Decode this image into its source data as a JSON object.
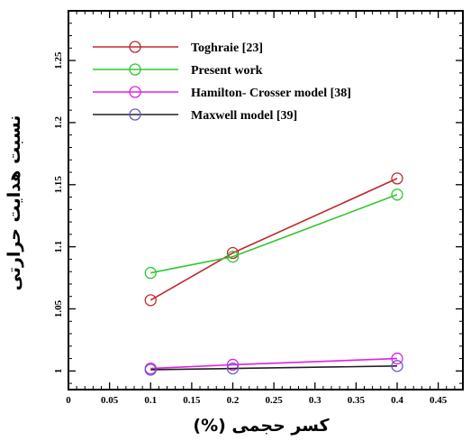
{
  "chart_data": {
    "type": "line",
    "xlabel": "(%) كسر حجمی",
    "ylabel": "نسبت هدایت حرارتی",
    "xlim": [
      0,
      0.48
    ],
    "ylim": [
      0.985,
      1.29
    ],
    "xticks": [
      "0",
      "0.05",
      "0.1",
      "0.15",
      "0.2",
      "0.25",
      "0.3",
      "0.35",
      "0.4",
      "0.45"
    ],
    "yticks": [
      "1",
      "1.05",
      "1.1",
      "1.15",
      "1.2",
      "1.25"
    ],
    "legend_position": "top-left",
    "grid": false,
    "series": [
      {
        "name": "Toghraie [23]",
        "color": "#c0282d",
        "x": [
          0.1,
          0.2,
          0.4
        ],
        "y": [
          1.057,
          1.095,
          1.155
        ]
      },
      {
        "name": "Present work",
        "color": "#2ec82e",
        "x": [
          0.1,
          0.2,
          0.4
        ],
        "y": [
          1.079,
          1.092,
          1.142
        ]
      },
      {
        "name": "Hamilton- Crosser model [38]",
        "color": "#e020e0",
        "x": [
          0.1,
          0.2,
          0.4
        ],
        "y": [
          1.002,
          1.005,
          1.01
        ]
      },
      {
        "name": "Maxwell model [39]",
        "color": "#202020",
        "marker_color": "#6a5acd",
        "x": [
          0.1,
          0.2,
          0.4
        ],
        "y": [
          1.001,
          1.002,
          1.004
        ]
      }
    ]
  }
}
